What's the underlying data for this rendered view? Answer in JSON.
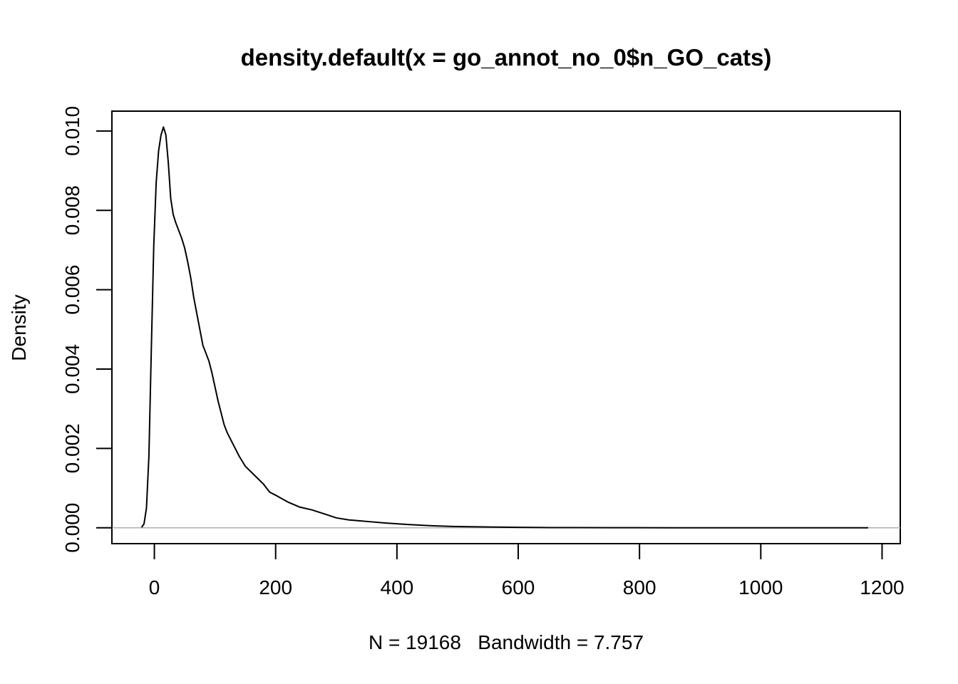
{
  "chart_data": {
    "type": "line",
    "title": "density.default(x = go_annot_no_0$n_GO_cats)",
    "xlabel": "N = 19168   Bandwidth = 7.757",
    "ylabel": "Density",
    "xlim": [
      -70,
      1230
    ],
    "ylim": [
      -0.0004,
      0.0105
    ],
    "x_ticks": [
      0,
      200,
      400,
      600,
      800,
      1000,
      1200
    ],
    "x_tick_labels": [
      "0",
      "200",
      "400",
      "600",
      "800",
      "1000",
      "1200"
    ],
    "y_ticks": [
      0,
      0.002,
      0.004,
      0.006,
      0.008,
      0.01
    ],
    "y_tick_labels": [
      "0.000",
      "0.002",
      "0.004",
      "0.006",
      "0.008",
      "0.010"
    ],
    "grid": false,
    "zero_line": true,
    "series": [
      {
        "x": [
          -21,
          -17,
          -13,
          -9,
          -5,
          -1,
          3,
          7,
          11,
          15,
          19,
          23,
          27,
          31,
          35,
          40,
          45,
          50,
          55,
          60,
          65,
          70,
          75,
          80,
          85,
          90,
          95,
          100,
          105,
          110,
          115,
          120,
          130,
          140,
          150,
          160,
          170,
          180,
          190,
          200,
          220,
          240,
          260,
          280,
          300,
          320,
          350,
          380,
          420,
          460,
          500,
          550,
          600,
          650,
          700,
          750,
          800,
          850,
          900,
          950,
          1000,
          1050,
          1100,
          1150,
          1177
        ],
        "y": [
          1e-05,
          0.0001,
          0.0005,
          0.0018,
          0.0045,
          0.0071,
          0.0087,
          0.0095,
          0.0099,
          0.0101,
          0.0099,
          0.0092,
          0.0083,
          0.0079,
          0.0077,
          0.0075,
          0.0073,
          0.00705,
          0.0067,
          0.0063,
          0.0058,
          0.0054,
          0.005,
          0.0046,
          0.0044,
          0.0042,
          0.0039,
          0.00355,
          0.0032,
          0.0029,
          0.0026,
          0.0024,
          0.0021,
          0.0018,
          0.00155,
          0.0014,
          0.00125,
          0.0011,
          0.0009,
          0.00082,
          0.00065,
          0.00052,
          0.00045,
          0.00035,
          0.00025,
          0.0002,
          0.00016,
          0.00012,
          8e-05,
          5e-05,
          3e-05,
          2e-05,
          1e-05,
          5e-06,
          3e-06,
          2e-06,
          1e-06,
          5e-07,
          3e-07,
          2e-07,
          1e-07,
          5e-08,
          3e-08,
          1e-08,
          0
        ]
      }
    ]
  }
}
